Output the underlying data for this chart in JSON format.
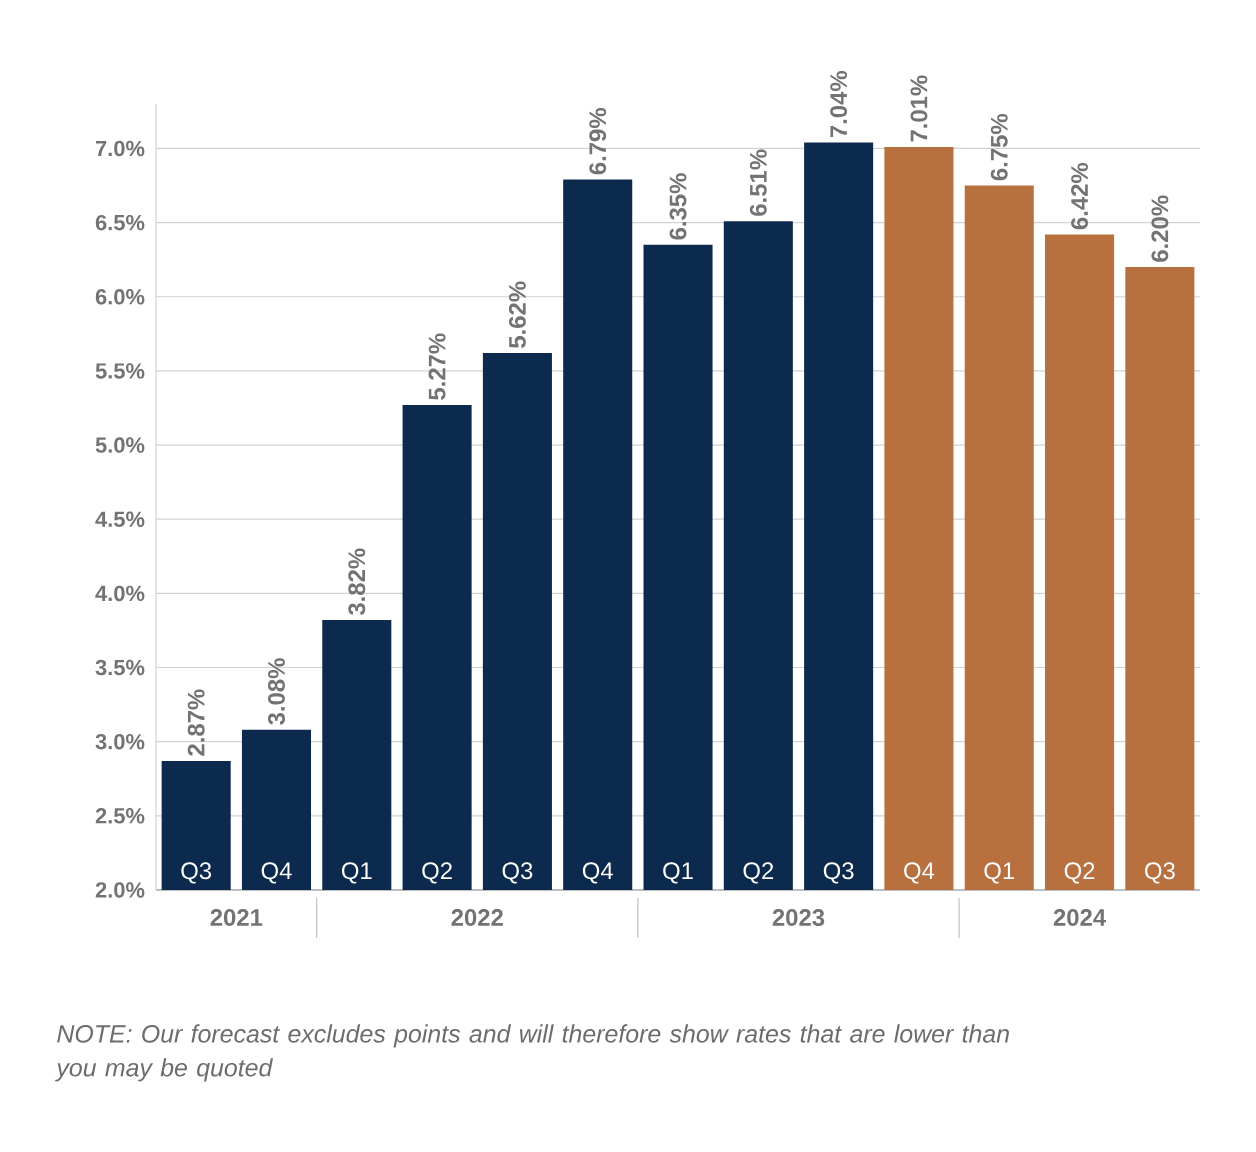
{
  "chart_data": {
    "type": "bar",
    "categories": [
      "Q3",
      "Q4",
      "Q1",
      "Q2",
      "Q3",
      "Q4",
      "Q1",
      "Q2",
      "Q3",
      "Q4",
      "Q1",
      "Q2",
      "Q3"
    ],
    "values": [
      2.87,
      3.08,
      3.82,
      5.27,
      5.62,
      6.79,
      6.35,
      6.51,
      7.04,
      7.01,
      6.75,
      6.42,
      6.2
    ],
    "colors": [
      "#0c2a4d",
      "#0c2a4d",
      "#0c2a4d",
      "#0c2a4d",
      "#0c2a4d",
      "#0c2a4d",
      "#0c2a4d",
      "#0c2a4d",
      "#0c2a4d",
      "#b8703f",
      "#b8703f",
      "#b8703f",
      "#b8703f"
    ],
    "value_labels": [
      "2.87%",
      "3.08%",
      "3.82%",
      "5.27%",
      "5.62%",
      "6.79%",
      "6.35%",
      "6.51%",
      "7.04%",
      "7.01%",
      "6.75%",
      "6.42%",
      "6.20%"
    ],
    "ylim": [
      2.0,
      7.3
    ],
    "yticks": [
      {
        "value": 2.0,
        "label": "2.0%"
      },
      {
        "value": 2.5,
        "label": "2.5%"
      },
      {
        "value": 3.0,
        "label": "3.0%"
      },
      {
        "value": 3.5,
        "label": "3.5%"
      },
      {
        "value": 4.0,
        "label": "4.0%"
      },
      {
        "value": 4.5,
        "label": "4.5%"
      },
      {
        "value": 5.0,
        "label": "5.0%"
      },
      {
        "value": 5.5,
        "label": "5.5%"
      },
      {
        "value": 6.0,
        "label": "6.0%"
      },
      {
        "value": 6.5,
        "label": "6.5%"
      },
      {
        "value": 7.0,
        "label": "7.0%"
      }
    ],
    "grid": "y",
    "annotations": [
      "2021",
      "2022",
      "2023",
      "2024",
      "NOTE: Our forecast excludes points and will therefore show rates that are lower than you may be quoted"
    ]
  }
}
